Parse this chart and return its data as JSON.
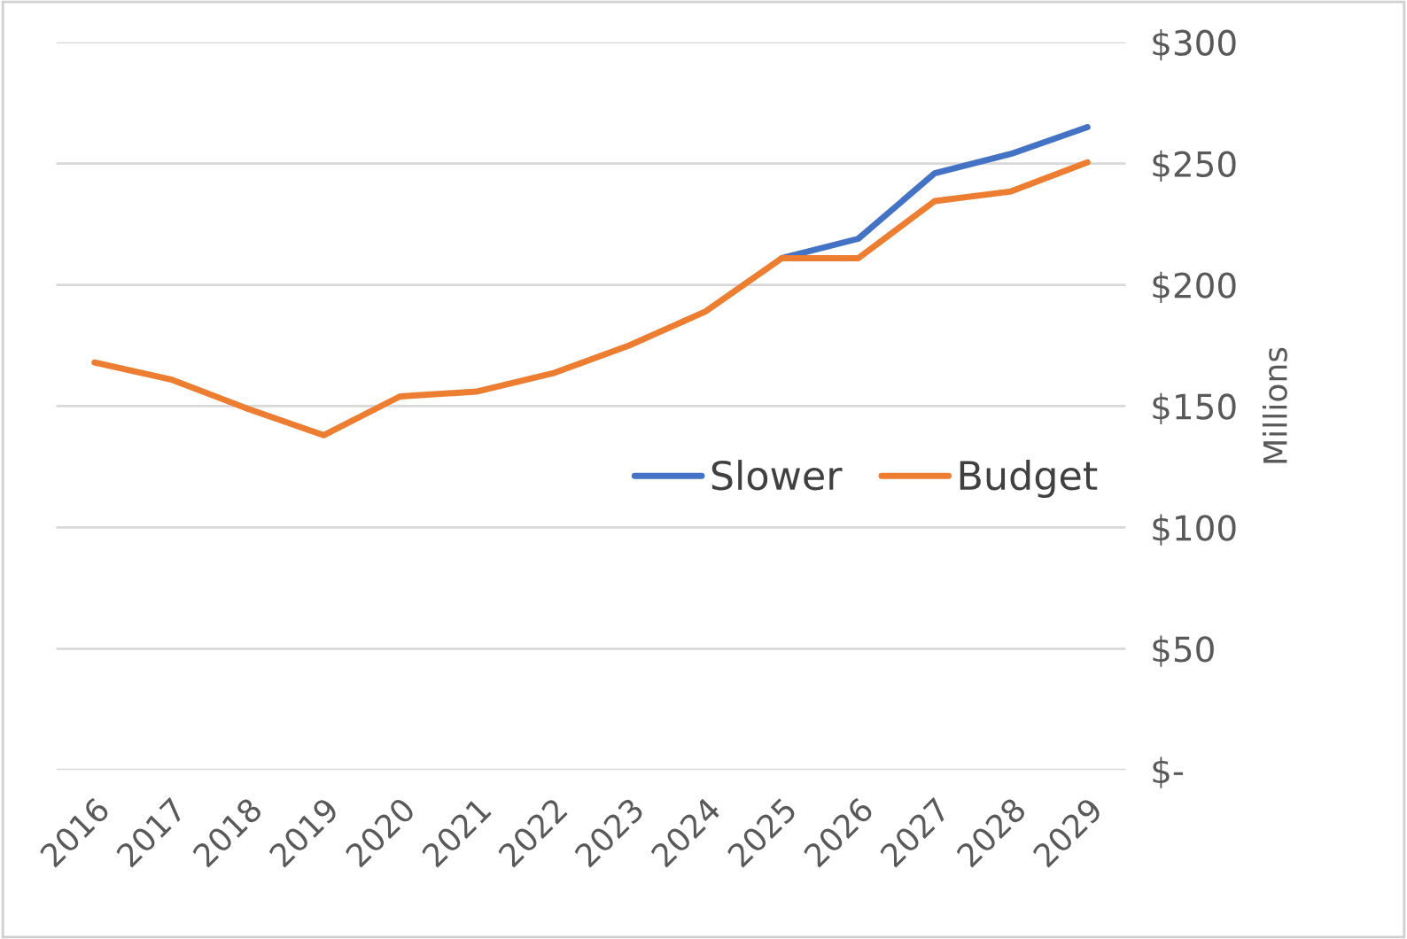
{
  "chart_data": {
    "type": "line",
    "categories": [
      "2016",
      "2017",
      "2018",
      "2019",
      "2020",
      "2021",
      "2022",
      "2023",
      "2024",
      "2025",
      "2026",
      "2027",
      "2028",
      "2029"
    ],
    "series": [
      {
        "name": "Slower",
        "color": "#4472c4",
        "values": [
          null,
          null,
          null,
          null,
          null,
          null,
          null,
          null,
          null,
          211,
          219,
          246,
          254,
          265
        ]
      },
      {
        "name": "Budget",
        "color": "#ed7d31",
        "values": [
          168,
          161,
          149,
          138,
          154,
          156,
          163.5,
          175,
          189,
          211,
          211,
          234.5,
          238.5,
          250.5
        ]
      }
    ],
    "ylabel": "Millions",
    "ylim": [
      0,
      300
    ],
    "yticks": [
      {
        "value": 0,
        "label": "$-"
      },
      {
        "value": 50,
        "label": "$50"
      },
      {
        "value": 100,
        "label": "$100"
      },
      {
        "value": 150,
        "label": "$150"
      },
      {
        "value": 200,
        "label": "$200"
      },
      {
        "value": 250,
        "label": "$250"
      },
      {
        "value": 300,
        "label": "$300"
      }
    ],
    "grid": "y",
    "legend": "right",
    "marker": "none",
    "line_style": "solid"
  }
}
